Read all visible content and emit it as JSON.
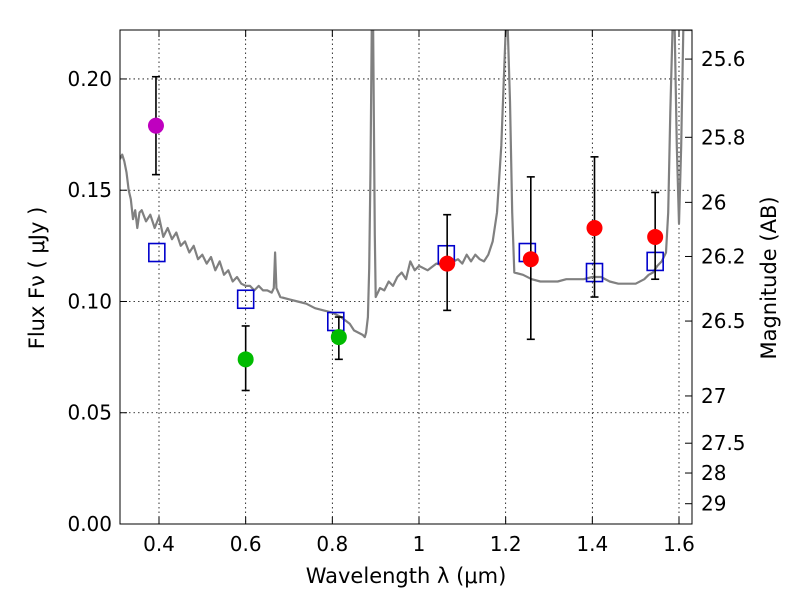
{
  "chart_data": {
    "type": "scatter",
    "xlabel": "Wavelength  λ (μm)",
    "ylabel": "Flux  Fν  ( μJy )",
    "ylabel_right": "Magnitude (AB)",
    "xlim": [
      0.31,
      1.63
    ],
    "ylim": [
      0.0,
      0.222
    ],
    "grid": true,
    "x_ticks": [
      {
        "value": 0.4,
        "label": "0.4"
      },
      {
        "value": 0.6,
        "label": "0.6"
      },
      {
        "value": 0.8,
        "label": "0.8"
      },
      {
        "value": 1.0,
        "label": "1"
      },
      {
        "value": 1.2,
        "label": "1.2"
      },
      {
        "value": 1.4,
        "label": "1.4"
      },
      {
        "value": 1.6,
        "label": "1.6"
      }
    ],
    "y_ticks": [
      {
        "value": 0.0,
        "label": "0.00"
      },
      {
        "value": 0.05,
        "label": "0.05"
      },
      {
        "value": 0.1,
        "label": "0.10"
      },
      {
        "value": 0.15,
        "label": "0.15"
      },
      {
        "value": 0.2,
        "label": "0.20"
      }
    ],
    "mag_ticks": [
      {
        "value": 25.6,
        "label": "25.6"
      },
      {
        "value": 25.8,
        "label": "25.8"
      },
      {
        "value": 26.0,
        "label": "26"
      },
      {
        "value": 26.2,
        "label": "26.2"
      },
      {
        "value": 26.5,
        "label": "26.5"
      },
      {
        "value": 27.0,
        "label": "27"
      },
      {
        "value": 27.5,
        "label": "27.5"
      },
      {
        "value": 28.0,
        "label": "28"
      },
      {
        "value": 29.0,
        "label": "29"
      }
    ],
    "colors": {
      "model": "#808080",
      "box": "#0000cc",
      "magenta": "#bf00bf",
      "green": "#00bb00",
      "red": "#ff0000",
      "error": "#000000",
      "grid": "#000000"
    },
    "observed": [
      {
        "x": 0.393,
        "y": 0.179,
        "err": [
          0.157,
          0.201
        ],
        "color": "magenta"
      },
      {
        "x": 0.6,
        "y": 0.074,
        "err": [
          0.06,
          0.089
        ],
        "color": "green"
      },
      {
        "x": 0.815,
        "y": 0.084,
        "err": [
          0.074,
          0.093
        ],
        "color": "green"
      },
      {
        "x": 1.065,
        "y": 0.117,
        "err": [
          0.096,
          0.139
        ],
        "color": "red"
      },
      {
        "x": 1.258,
        "y": 0.119,
        "err": [
          0.083,
          0.156
        ],
        "color": "red"
      },
      {
        "x": 1.405,
        "y": 0.133,
        "err": [
          0.102,
          0.165
        ],
        "color": "red"
      },
      {
        "x": 1.545,
        "y": 0.129,
        "err": [
          0.11,
          0.149
        ],
        "color": "red"
      }
    ],
    "model_bandpass": [
      {
        "x": 0.395,
        "y": 0.122
      },
      {
        "x": 0.6,
        "y": 0.101
      },
      {
        "x": 0.808,
        "y": 0.091
      },
      {
        "x": 1.063,
        "y": 0.121
      },
      {
        "x": 1.25,
        "y": 0.122
      },
      {
        "x": 1.405,
        "y": 0.113
      },
      {
        "x": 1.545,
        "y": 0.118
      }
    ],
    "model_spectrum": [
      [
        0.31,
        0.164
      ],
      [
        0.315,
        0.166
      ],
      [
        0.32,
        0.163
      ],
      [
        0.325,
        0.158
      ],
      [
        0.33,
        0.15
      ],
      [
        0.335,
        0.146
      ],
      [
        0.34,
        0.137
      ],
      [
        0.345,
        0.141
      ],
      [
        0.35,
        0.133
      ],
      [
        0.355,
        0.14
      ],
      [
        0.36,
        0.141
      ],
      [
        0.37,
        0.136
      ],
      [
        0.38,
        0.139
      ],
      [
        0.39,
        0.133
      ],
      [
        0.4,
        0.138
      ],
      [
        0.41,
        0.129
      ],
      [
        0.42,
        0.133
      ],
      [
        0.43,
        0.128
      ],
      [
        0.44,
        0.131
      ],
      [
        0.45,
        0.125
      ],
      [
        0.46,
        0.127
      ],
      [
        0.47,
        0.122
      ],
      [
        0.48,
        0.125
      ],
      [
        0.49,
        0.119
      ],
      [
        0.5,
        0.121
      ],
      [
        0.51,
        0.117
      ],
      [
        0.52,
        0.12
      ],
      [
        0.53,
        0.114
      ],
      [
        0.54,
        0.118
      ],
      [
        0.55,
        0.112
      ],
      [
        0.56,
        0.114
      ],
      [
        0.57,
        0.109
      ],
      [
        0.58,
        0.111
      ],
      [
        0.59,
        0.108
      ],
      [
        0.6,
        0.107
      ],
      [
        0.61,
        0.107
      ],
      [
        0.62,
        0.105
      ],
      [
        0.63,
        0.107
      ],
      [
        0.64,
        0.105
      ],
      [
        0.65,
        0.105
      ],
      [
        0.66,
        0.104
      ],
      [
        0.665,
        0.106
      ],
      [
        0.668,
        0.122
      ],
      [
        0.671,
        0.106
      ],
      [
        0.68,
        0.102
      ],
      [
        0.7,
        0.101
      ],
      [
        0.72,
        0.1
      ],
      [
        0.74,
        0.099
      ],
      [
        0.76,
        0.097
      ],
      [
        0.78,
        0.096
      ],
      [
        0.8,
        0.095
      ],
      [
        0.82,
        0.093
      ],
      [
        0.84,
        0.09
      ],
      [
        0.85,
        0.087
      ],
      [
        0.86,
        0.086
      ],
      [
        0.87,
        0.085
      ],
      [
        0.875,
        0.084
      ],
      [
        0.878,
        0.086
      ],
      [
        0.882,
        0.093
      ],
      [
        0.885,
        0.115
      ],
      [
        0.888,
        0.16
      ],
      [
        0.891,
        0.225
      ],
      [
        0.894,
        0.225
      ],
      [
        0.896,
        0.18
      ],
      [
        0.898,
        0.13
      ],
      [
        0.9,
        0.102
      ],
      [
        0.91,
        0.106
      ],
      [
        0.92,
        0.105
      ],
      [
        0.93,
        0.109
      ],
      [
        0.94,
        0.107
      ],
      [
        0.95,
        0.111
      ],
      [
        0.96,
        0.113
      ],
      [
        0.97,
        0.11
      ],
      [
        0.98,
        0.118
      ],
      [
        0.99,
        0.114
      ],
      [
        1.0,
        0.116
      ],
      [
        1.02,
        0.114
      ],
      [
        1.04,
        0.117
      ],
      [
        1.06,
        0.116
      ],
      [
        1.08,
        0.118
      ],
      [
        1.09,
        0.119
      ],
      [
        1.1,
        0.117
      ],
      [
        1.11,
        0.121
      ],
      [
        1.12,
        0.118
      ],
      [
        1.13,
        0.121
      ],
      [
        1.14,
        0.119
      ],
      [
        1.15,
        0.118
      ],
      [
        1.16,
        0.121
      ],
      [
        1.17,
        0.127
      ],
      [
        1.18,
        0.14
      ],
      [
        1.19,
        0.17
      ],
      [
        1.2,
        0.222
      ],
      [
        1.205,
        0.222
      ],
      [
        1.21,
        0.19
      ],
      [
        1.215,
        0.14
      ],
      [
        1.22,
        0.113
      ],
      [
        1.24,
        0.112
      ],
      [
        1.26,
        0.11
      ],
      [
        1.28,
        0.109
      ],
      [
        1.3,
        0.109
      ],
      [
        1.32,
        0.109
      ],
      [
        1.34,
        0.11
      ],
      [
        1.36,
        0.11
      ],
      [
        1.38,
        0.11
      ],
      [
        1.4,
        0.111
      ],
      [
        1.42,
        0.111
      ],
      [
        1.44,
        0.109
      ],
      [
        1.46,
        0.108
      ],
      [
        1.48,
        0.108
      ],
      [
        1.5,
        0.108
      ],
      [
        1.52,
        0.11
      ],
      [
        1.53,
        0.112
      ],
      [
        1.54,
        0.113
      ],
      [
        1.55,
        0.116
      ],
      [
        1.56,
        0.118
      ],
      [
        1.57,
        0.122
      ],
      [
        1.575,
        0.14
      ],
      [
        1.58,
        0.185
      ],
      [
        1.585,
        0.222
      ],
      [
        1.59,
        0.222
      ],
      [
        1.595,
        0.17
      ],
      [
        1.6,
        0.135
      ],
      [
        1.605,
        0.17
      ],
      [
        1.61,
        0.222
      ],
      [
        1.63,
        0.222
      ]
    ]
  }
}
